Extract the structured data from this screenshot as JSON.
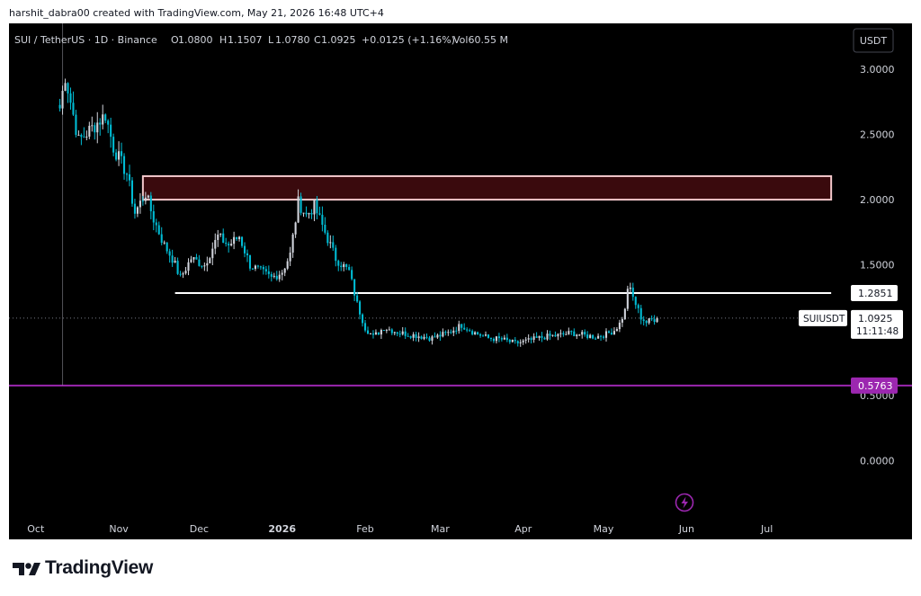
{
  "header": {
    "credit": "harshit_dabra00 created with TradingView.com, May 21, 2026 16:48 UTC+4"
  },
  "legend": {
    "symbol": "SUI / TetherUS · 1D · Binance",
    "open_label": "O",
    "open": "1.0800",
    "high_label": "H",
    "high": "1.1507",
    "low_label": "L",
    "low": "1.0780",
    "close_label": "C",
    "close": "1.0925",
    "change": "+0.0125 (+1.16%)",
    "volume": "Vol60.55 M"
  },
  "currency_button": "USDT",
  "price_labels": {
    "line_level": "1.2851",
    "symbol_tag": "SUIUSDT",
    "last_price": "1.0925",
    "countdown": "11:11:48",
    "support_level": "0.5763"
  },
  "footer": {
    "brand": "TradingView"
  },
  "colors": {
    "background": "#000000",
    "up_candle": "#d1d4dc",
    "down_candle": "#00bcd4",
    "resistance_zone_fill": "#3a0a0d",
    "resistance_zone_border": "#f2c7ca",
    "level_line": "#ffffff",
    "support_line": "#9c27b0",
    "replay_icon": "#9c27b0"
  },
  "chart_data": {
    "type": "candlestick",
    "title": "SUI / TetherUS · 1D · Binance",
    "x_tick_labels": [
      "Oct",
      "Nov",
      "Dec",
      "2026",
      "Feb",
      "Mar",
      "Apr",
      "May",
      "Jun",
      "Jul"
    ],
    "y_tick_labels": [
      "3.0000",
      "2.5000",
      "2.0000",
      "1.5000",
      "0.5000",
      "0.0000"
    ],
    "y_ticks": [
      3.0,
      2.5,
      2.0,
      1.5,
      0.5,
      0.0
    ],
    "ylim": [
      -0.45,
      3.35
    ],
    "x_range": [
      "2025-09-21",
      "2026-07-31"
    ],
    "grid": false,
    "series": [
      {
        "close_path": [
          [
            "2025-10-10",
            2.7
          ],
          [
            "2025-10-12",
            2.95
          ],
          [
            "2025-10-17",
            2.45
          ],
          [
            "2025-10-22",
            2.55
          ],
          [
            "2025-10-27",
            2.65
          ],
          [
            "2025-10-30",
            2.4
          ],
          [
            "2025-11-04",
            2.2
          ],
          [
            "2025-11-07",
            1.9
          ],
          [
            "2025-11-11",
            2.05
          ],
          [
            "2025-11-14",
            1.85
          ],
          [
            "2025-11-18",
            1.65
          ],
          [
            "2025-11-21",
            1.55
          ],
          [
            "2025-11-24",
            1.4
          ],
          [
            "2025-11-28",
            1.55
          ],
          [
            "2025-12-03",
            1.5
          ],
          [
            "2025-12-08",
            1.72
          ],
          [
            "2025-12-12",
            1.65
          ],
          [
            "2025-12-16",
            1.72
          ],
          [
            "2025-12-20",
            1.5
          ],
          [
            "2025-12-24",
            1.45
          ],
          [
            "2025-12-28",
            1.4
          ],
          [
            "2026-01-01",
            1.45
          ],
          [
            "2026-01-04",
            1.58
          ],
          [
            "2026-01-07",
            1.98
          ],
          [
            "2026-01-10",
            1.88
          ],
          [
            "2026-01-13",
            1.95
          ],
          [
            "2026-01-17",
            1.75
          ],
          [
            "2026-01-21",
            1.55
          ],
          [
            "2026-01-26",
            1.45
          ],
          [
            "2026-01-29",
            1.2
          ],
          [
            "2026-02-01",
            1.02
          ],
          [
            "2026-02-04",
            0.95
          ],
          [
            "2026-02-08",
            1.02
          ],
          [
            "2026-02-14",
            0.98
          ],
          [
            "2026-02-20",
            0.96
          ],
          [
            "2026-02-26",
            0.94
          ],
          [
            "2026-03-04",
            0.98
          ],
          [
            "2026-03-09",
            1.04
          ],
          [
            "2026-03-14",
            0.98
          ],
          [
            "2026-03-19",
            0.94
          ],
          [
            "2026-03-24",
            0.93
          ],
          [
            "2026-03-29",
            0.9
          ],
          [
            "2026-04-03",
            0.92
          ],
          [
            "2026-04-09",
            0.95
          ],
          [
            "2026-04-14",
            0.96
          ],
          [
            "2026-04-19",
            0.98
          ],
          [
            "2026-04-24",
            0.96
          ],
          [
            "2026-04-28",
            0.95
          ],
          [
            "2026-05-02",
            0.97
          ],
          [
            "2026-05-05",
            1.0
          ],
          [
            "2026-05-07",
            1.05
          ],
          [
            "2026-05-09",
            1.15
          ],
          [
            "2026-05-10",
            1.33
          ],
          [
            "2026-05-11",
            1.3
          ],
          [
            "2026-05-13",
            1.2
          ],
          [
            "2026-05-15",
            1.1
          ],
          [
            "2026-05-17",
            1.06
          ],
          [
            "2026-05-19",
            1.08
          ],
          [
            "2026-05-21",
            1.0925
          ]
        ]
      }
    ],
    "annotations": {
      "resistance_zone": {
        "from": "2025-11-10",
        "to": "2026-07-25",
        "bottom": 2.0,
        "top": 2.18
      },
      "horizontal_line": {
        "from": "2025-11-22",
        "to": "2026-07-25",
        "value": 1.2851
      },
      "support_line": {
        "value": 0.5763
      },
      "last_price": 1.0925
    }
  }
}
